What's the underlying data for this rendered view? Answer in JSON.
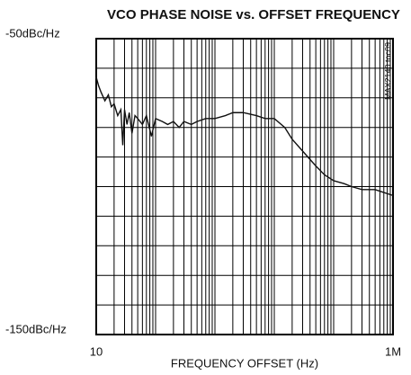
{
  "chart_data": {
    "type": "line",
    "title": "VCO PHASE NOISE vs. OFFSET FREQUENCY",
    "x_label": "FREQUENCY OFFSET (Hz)",
    "annotation": "MAX2140 toc09",
    "log_x": true,
    "grid": true,
    "xlim": [
      10,
      1000000
    ],
    "ylim": [
      -150,
      -50
    ],
    "xticks": [
      10,
      {
        "value": 1000000,
        "label": "1M"
      }
    ],
    "yticks": [
      {
        "value": -150,
        "label": "-150dBc/Hz"
      },
      {
        "value": -50,
        "label": "-50dBc/Hz"
      }
    ],
    "xgrid": [
      20,
      30,
      40,
      50,
      60,
      70,
      80,
      90,
      100,
      200,
      300,
      400,
      500,
      600,
      700,
      800,
      900,
      1000,
      2000,
      3000,
      4000,
      5000,
      6000,
      7000,
      8000,
      9000,
      10000,
      20000,
      30000,
      40000,
      50000,
      60000,
      70000,
      80000,
      90000,
      100000,
      200000,
      300000,
      400000,
      500000,
      600000,
      700000,
      800000,
      900000
    ],
    "ygrid": [
      -60,
      -70,
      -80,
      -90,
      -100,
      -110,
      -120,
      -130,
      -140
    ],
    "series": [
      {
        "name": "Phase noise",
        "color": "#111111",
        "x": [
          10,
          11,
          12,
          14,
          16,
          18,
          20,
          23,
          26,
          28,
          30,
          33,
          36,
          40,
          45,
          50,
          60,
          70,
          85,
          100,
          130,
          160,
          200,
          250,
          300,
          400,
          500,
          700,
          1000,
          1500,
          2000,
          3000,
          5000,
          7000,
          10000,
          15000,
          20000,
          30000,
          50000,
          70000,
          100000,
          150000,
          200000,
          300000,
          500000,
          700000,
          1000000
        ],
        "values": [
          -63,
          -66,
          -68,
          -71,
          -69,
          -73,
          -72,
          -76,
          -74,
          -86,
          -74,
          -79,
          -75,
          -82,
          -76,
          -77,
          -79,
          -76,
          -83,
          -77,
          -78,
          -79,
          -78,
          -80,
          -78,
          -79,
          -78,
          -77,
          -77,
          -76,
          -75,
          -75,
          -76,
          -77,
          -77,
          -80,
          -84,
          -88,
          -93,
          -96,
          -98,
          -99,
          -100,
          -101,
          -101,
          -102,
          -103
        ]
      }
    ]
  }
}
